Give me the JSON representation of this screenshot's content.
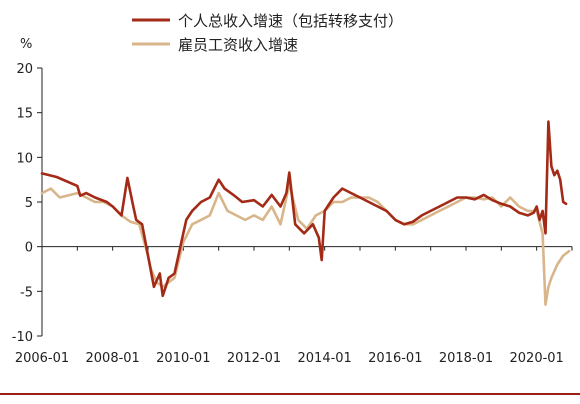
{
  "chart_data": {
    "type": "line",
    "ylabel": "%",
    "ylim": [
      -10,
      20
    ],
    "yticks": [
      -10,
      -5,
      0,
      5,
      10,
      15,
      20
    ],
    "xlim": [
      "2006-01",
      "2021-01"
    ],
    "xticks": [
      "2006-01",
      "2008-01",
      "2010-01",
      "2012-01",
      "2014-01",
      "2016-01",
      "2018-01",
      "2020-01"
    ],
    "grid": false,
    "legend_position": "top-center",
    "series": [
      {
        "name": "个人总收入增速（包括转移支付）",
        "color": "#a32a16",
        "x": [
          "2006-01",
          "2006-06",
          "2007-01",
          "2007-02",
          "2007-04",
          "2007-07",
          "2007-11",
          "2008-01",
          "2008-04",
          "2008-06",
          "2008-08",
          "2008-09",
          "2008-11",
          "2009-01",
          "2009-03",
          "2009-05",
          "2009-06",
          "2009-07",
          "2009-08",
          "2009-10",
          "2010-01",
          "2010-02",
          "2010-04",
          "2010-07",
          "2010-10",
          "2011-01",
          "2011-03",
          "2011-06",
          "2011-09",
          "2012-01",
          "2012-04",
          "2012-07",
          "2012-10",
          "2012-12",
          "2013-01",
          "2013-03",
          "2013-06",
          "2013-09",
          "2013-11",
          "2013-12",
          "2014-01",
          "2014-04",
          "2014-07",
          "2014-10",
          "2015-01",
          "2015-04",
          "2015-07",
          "2015-10",
          "2016-01",
          "2016-04",
          "2016-07",
          "2016-10",
          "2017-01",
          "2017-04",
          "2017-07",
          "2017-10",
          "2018-01",
          "2018-04",
          "2018-07",
          "2018-10",
          "2019-01",
          "2019-04",
          "2019-07",
          "2019-10",
          "2019-12",
          "2020-01",
          "2020-02",
          "2020-03",
          "2020-04",
          "2020-05",
          "2020-06",
          "2020-07",
          "2020-08",
          "2020-09",
          "2020-10",
          "2020-11"
        ],
        "values": [
          8.2,
          7.8,
          6.8,
          5.7,
          6.0,
          5.5,
          5.0,
          4.5,
          3.5,
          7.7,
          4.5,
          3.0,
          2.5,
          -1.0,
          -4.5,
          -3.0,
          -5.5,
          -4.5,
          -3.5,
          -3.0,
          1.5,
          3.0,
          4.0,
          5.0,
          5.5,
          7.5,
          6.5,
          5.8,
          5.0,
          5.2,
          4.5,
          5.8,
          4.5,
          6.0,
          8.3,
          2.5,
          1.5,
          2.5,
          1.0,
          -1.5,
          4.0,
          5.5,
          6.5,
          6.0,
          5.5,
          5.0,
          4.5,
          4.0,
          3.0,
          2.5,
          2.8,
          3.5,
          4.0,
          4.5,
          5.0,
          5.5,
          5.5,
          5.3,
          5.8,
          5.2,
          4.8,
          4.5,
          3.8,
          3.5,
          3.8,
          4.5,
          3.0,
          4.0,
          1.5,
          14.0,
          9.0,
          8.0,
          8.5,
          7.5,
          5.0,
          4.8
        ]
      },
      {
        "name": "雇员工资收入增速",
        "color": "#d8b58a",
        "x": [
          "2006-01",
          "2006-04",
          "2006-07",
          "2007-01",
          "2007-04",
          "2007-07",
          "2007-10",
          "2008-01",
          "2008-04",
          "2008-07",
          "2008-10",
          "2009-01",
          "2009-02",
          "2009-04",
          "2009-06",
          "2009-08",
          "2009-10",
          "2010-01",
          "2010-04",
          "2010-07",
          "2010-10",
          "2011-01",
          "2011-04",
          "2011-07",
          "2011-10",
          "2012-01",
          "2012-04",
          "2012-07",
          "2012-10",
          "2013-01",
          "2013-04",
          "2013-07",
          "2013-10",
          "2014-01",
          "2014-04",
          "2014-07",
          "2014-10",
          "2015-01",
          "2015-04",
          "2015-07",
          "2015-10",
          "2016-01",
          "2016-04",
          "2016-07",
          "2016-10",
          "2017-01",
          "2017-04",
          "2017-07",
          "2017-10",
          "2018-01",
          "2018-04",
          "2018-07",
          "2018-10",
          "2019-01",
          "2019-04",
          "2019-07",
          "2019-10",
          "2020-01",
          "2020-03",
          "2020-04",
          "2020-05",
          "2020-06",
          "2020-08",
          "2020-10",
          "2020-12"
        ],
        "values": [
          6.0,
          6.5,
          5.5,
          6.0,
          5.5,
          5.0,
          5.0,
          4.5,
          3.5,
          2.8,
          2.5,
          -1.0,
          -2.5,
          -4.0,
          -4.5,
          -4.0,
          -3.5,
          0.5,
          2.5,
          3.0,
          3.5,
          6.0,
          4.0,
          3.5,
          3.0,
          3.5,
          3.0,
          4.5,
          2.5,
          7.0,
          3.0,
          2.0,
          3.5,
          4.0,
          5.0,
          5.0,
          5.5,
          5.5,
          5.5,
          5.0,
          4.0,
          3.0,
          2.5,
          2.5,
          3.0,
          3.5,
          4.0,
          4.5,
          5.0,
          5.5,
          5.5,
          5.3,
          5.5,
          4.5,
          5.5,
          4.5,
          4.0,
          4.0,
          1.5,
          -6.5,
          -4.5,
          -3.5,
          -2.0,
          -1.0,
          -0.5
        ]
      }
    ]
  }
}
